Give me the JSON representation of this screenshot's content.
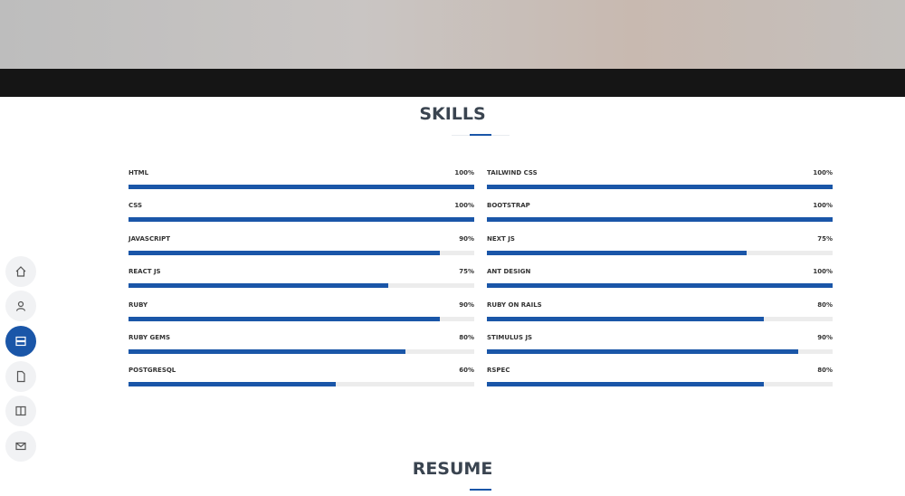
{
  "skills": {
    "title": "SKILLS",
    "left": [
      {
        "name": "HTML",
        "value": 100,
        "label": "100%"
      },
      {
        "name": "CSS",
        "value": 100,
        "label": "100%"
      },
      {
        "name": "JAVASCRIPT",
        "value": 90,
        "label": "90%"
      },
      {
        "name": "REACT JS",
        "value": 75,
        "label": "75%"
      },
      {
        "name": "RUBY",
        "value": 90,
        "label": "90%"
      },
      {
        "name": "RUBY GEMS",
        "value": 80,
        "label": "80%"
      },
      {
        "name": "POSTGRESQL",
        "value": 60,
        "label": "60%"
      }
    ],
    "right": [
      {
        "name": "TAILWIND CSS",
        "value": 100,
        "label": "100%"
      },
      {
        "name": "BOOTSTRAP",
        "value": 100,
        "label": "100%"
      },
      {
        "name": "NEXT JS",
        "value": 75,
        "label": "75%"
      },
      {
        "name": "ANT DESIGN",
        "value": 100,
        "label": "100%"
      },
      {
        "name": "RUBY ON RAILS",
        "value": 80,
        "label": "80%"
      },
      {
        "name": "STIMULUS JS",
        "value": 90,
        "label": "90%"
      },
      {
        "name": "RSPEC",
        "value": 80,
        "label": "80%"
      }
    ]
  },
  "resume": {
    "title": "RESUME"
  }
}
